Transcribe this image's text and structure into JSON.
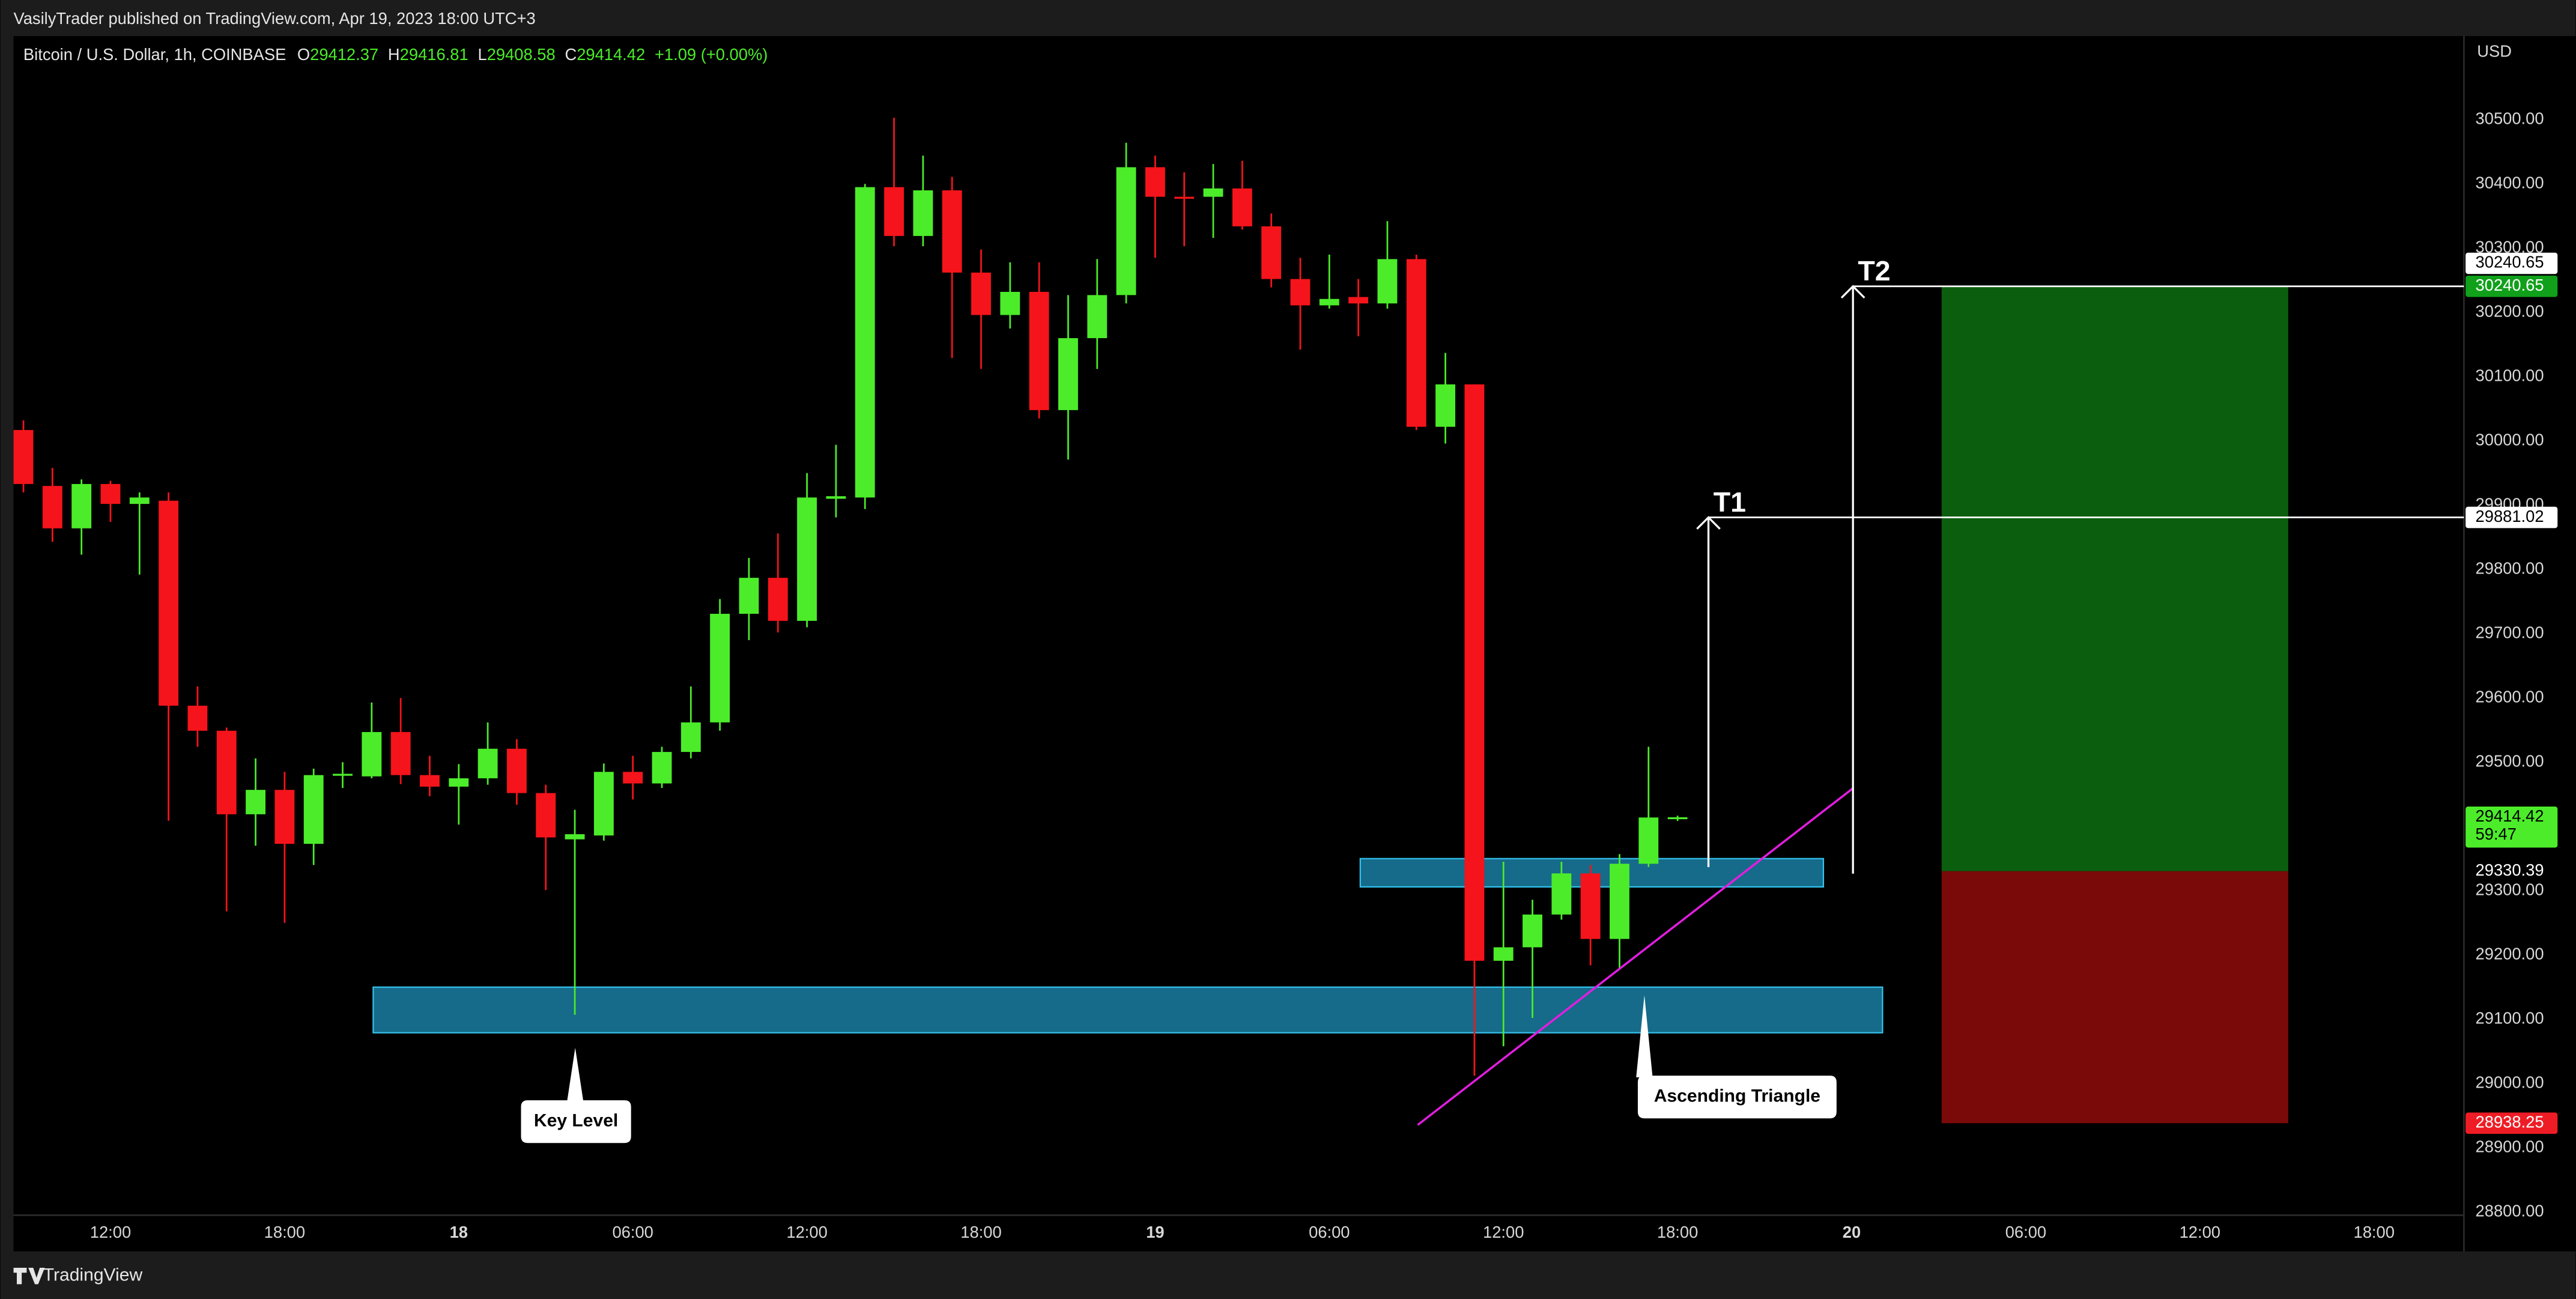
{
  "header": {
    "published": "VasilyTrader published on TradingView.com, Apr 19, 2023 18:00 UTC+3"
  },
  "footer": {
    "brand": "TradingView"
  },
  "chart_data": {
    "type": "candlestick",
    "title": "Bitcoin / U.S. Dollar, 1h, COINBASE",
    "ohlc_prefixes": [
      "O",
      "H",
      "L",
      "C"
    ],
    "change": "+1.09 (+0.00%)",
    "currency": "USD",
    "countdown": "59:47",
    "up_color": "#4cec2a",
    "down_color": "#f5141b",
    "categories": [
      null,
      null,
      null,
      "12:00",
      null,
      null,
      null,
      null,
      null,
      "18:00",
      null,
      null,
      null,
      null,
      null,
      "18",
      null,
      null,
      null,
      null,
      null,
      "06:00",
      null,
      null,
      null,
      null,
      null,
      "12:00",
      null,
      null,
      null,
      null,
      null,
      "18:00",
      null,
      null,
      null,
      null,
      null,
      "19",
      null,
      null,
      null,
      null,
      null,
      "06:00",
      null,
      null,
      null,
      null,
      null,
      "12:00",
      null,
      null,
      null,
      null,
      null,
      "18:00",
      null,
      null,
      null,
      null,
      null,
      "20",
      null,
      null,
      null,
      null,
      null,
      "06:00",
      null,
      null,
      null,
      null,
      null,
      "12:00",
      null,
      null,
      null,
      null,
      null,
      "18:00",
      null,
      null,
      null
    ],
    "open": [
      30017,
      29930,
      29864,
      29933,
      29902,
      29907,
      29588,
      29549,
      29419,
      29457,
      29373,
      29480,
      29478,
      29547,
      29480,
      29462,
      29475,
      29521,
      29452,
      29380,
      29386,
      29485,
      29467,
      29516,
      29562,
      29731,
      29787,
      29720,
      29910,
      29912,
      30395,
      30319,
      30390,
      30262,
      30196,
      30232,
      30048,
      30160,
      30227,
      30426,
      30380,
      30380,
      30393,
      30334,
      30252,
      30211,
      30224,
      30214,
      30283,
      30022,
      30088,
      29191,
      29212,
      29263,
      29327,
      29225,
      29342,
      29412.37,
      null,
      null,
      null,
      null,
      null,
      null,
      null,
      null,
      null,
      null,
      null,
      null,
      null,
      null,
      null,
      null,
      null,
      null,
      null,
      null,
      null,
      null,
      null,
      null,
      null,
      null,
      null
    ],
    "high": [
      30032,
      29958,
      29940,
      29938,
      29920,
      29920,
      29618,
      29554,
      29506,
      29485,
      29490,
      29500,
      29593,
      29600,
      29510,
      29497,
      29562,
      29536,
      29465,
      29426,
      29498,
      29510,
      29524,
      29618,
      29754,
      29818,
      29856,
      29950,
      29994,
      30400,
      30503,
      30444,
      30411,
      30298,
      30278,
      30278,
      30227,
      30283,
      30464,
      30444,
      30418,
      30431,
      30436,
      30354,
      30285,
      30290,
      30252,
      30342,
      30290,
      30137,
      30088,
      29345,
      29286,
      29345,
      29340,
      29357,
      29524,
      29416.81,
      null,
      null,
      null,
      null,
      null,
      null,
      null,
      null,
      null,
      null,
      null,
      null,
      null,
      null,
      null,
      null,
      null,
      null,
      null,
      null,
      null,
      null,
      null,
      null,
      null,
      null,
      null
    ],
    "low": [
      29920,
      29843,
      29823,
      29874,
      29792,
      29409,
      29524,
      29268,
      29370,
      29250,
      29340,
      29460,
      29475,
      29466,
      29447,
      29403,
      29465,
      29434,
      29301,
      29107,
      29378,
      29442,
      29460,
      29506,
      29549,
      29690,
      29702,
      29710,
      29881,
      29894,
      30303,
      30303,
      30129,
      30112,
      30175,
      30035,
      29971,
      30112,
      30214,
      30285,
      30303,
      30316,
      30329,
      30239,
      30142,
      30206,
      30163,
      30206,
      30017,
      29996,
      29012,
      29058,
      29102,
      29255,
      29184,
      29179,
      29337,
      29408.58,
      null,
      null,
      null,
      null,
      null,
      null,
      null,
      null,
      null,
      null,
      null,
      null,
      null,
      null,
      null,
      null,
      null,
      null,
      null,
      null,
      null,
      null,
      null,
      null,
      null,
      null,
      null
    ],
    "close": [
      29933,
      29864,
      29933,
      29902,
      29912,
      29588,
      29549,
      29419,
      29457,
      29373,
      29480,
      29482,
      29547,
      29480,
      29462,
      29475,
      29521,
      29452,
      29383,
      29388,
      29485,
      29467,
      29516,
      29562,
      29731,
      29787,
      29720,
      29912,
      29914,
      30395,
      30319,
      30390,
      30262,
      30196,
      30232,
      30048,
      30160,
      30227,
      30426,
      30380,
      30377,
      30393,
      30334,
      30252,
      30211,
      30221,
      30214,
      30283,
      30022,
      30088,
      29191,
      29212,
      29263,
      29327,
      29225,
      29342,
      29414,
      29414.42,
      null,
      null,
      null,
      null,
      null,
      null,
      null,
      null,
      null,
      null,
      null,
      null,
      null,
      null,
      null,
      null,
      null,
      null,
      null,
      null,
      null,
      null,
      null,
      null,
      null,
      null,
      null
    ],
    "ylim": [
      28795,
      30630
    ],
    "yticks": [
      {
        "value": 28800,
        "label": "28800.00"
      },
      {
        "value": 28900,
        "label": "28900.00"
      },
      {
        "value": 29000,
        "label": "29000.00"
      },
      {
        "value": 29100,
        "label": "29100.00"
      },
      {
        "value": 29200,
        "label": "29200.00"
      },
      {
        "value": 29300,
        "label": "29300.00"
      },
      {
        "value": 29400,
        "label": "29400.00"
      },
      {
        "value": 29500,
        "label": "29500.00"
      },
      {
        "value": 29600,
        "label": "29600.00"
      },
      {
        "value": 29700,
        "label": "29700.00"
      },
      {
        "value": 29800,
        "label": "29800.00"
      },
      {
        "value": 29900,
        "label": "29900.00"
      },
      {
        "value": 30000,
        "label": "30000.00"
      },
      {
        "value": 30100,
        "label": "30100.00"
      },
      {
        "value": 30200,
        "label": "30200.00"
      },
      {
        "value": 30300,
        "label": "30300.00"
      },
      {
        "value": 30400,
        "label": "30400.00"
      },
      {
        "value": 30500,
        "label": "30500.00"
      }
    ],
    "zones": [
      {
        "low": 29079,
        "high": 29150
      },
      {
        "low": 29306,
        "high": 29350
      }
    ],
    "zone_color": "#1a86ab",
    "levels": [
      {
        "label": "T1",
        "value": 29881.02
      },
      {
        "label": "T2",
        "value": 30240.65
      }
    ],
    "position": {
      "target": 30240.65,
      "entry": 29330.39,
      "stop": 28938.25,
      "profit_color": "#0b5e0e",
      "loss_color": "#7a0a09"
    },
    "trendline_color": "#e21ee0",
    "annotations": [
      "Key Level",
      "Ascending Triangle"
    ]
  }
}
